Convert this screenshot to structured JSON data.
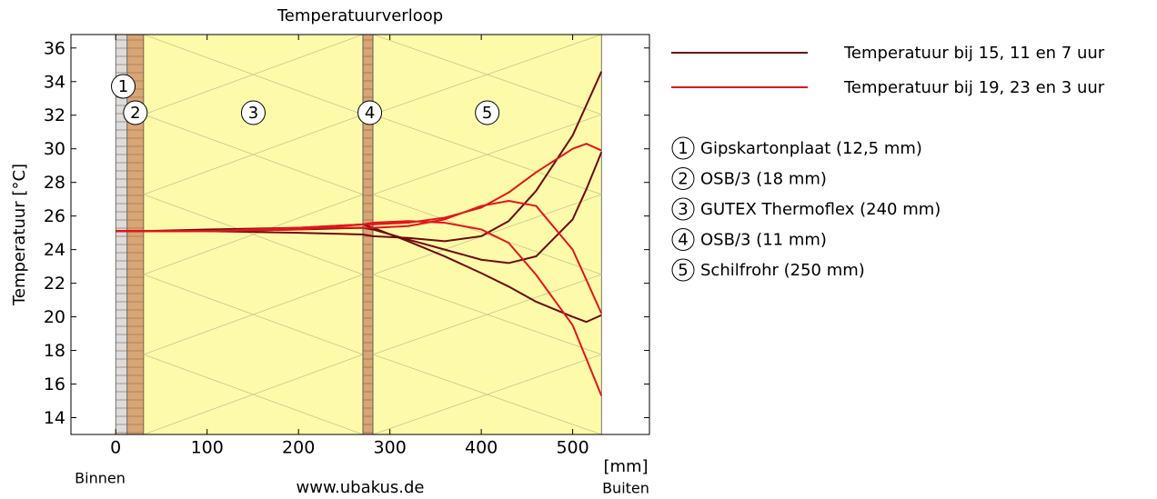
{
  "chart_data": {
    "type": "line",
    "title": "Temperatuurverloop",
    "ylabel": "Temperatuur [°C]",
    "xlabel": "[mm]",
    "inside_label": "Binnen",
    "outside_label": "Buiten",
    "source": "www.ubakus.de",
    "xlim": [
      -49,
      584
    ],
    "ylim": [
      13,
      36.8
    ],
    "xticks": [
      0,
      100,
      200,
      300,
      400,
      500
    ],
    "yticks": [
      14,
      16,
      18,
      20,
      22,
      24,
      26,
      28,
      30,
      32,
      34,
      36
    ],
    "layers": [
      {
        "label": "1",
        "name": "Gipskartonplaat (12,5 mm)",
        "thickness": 12.5,
        "color": "#dcdcdc"
      },
      {
        "label": "2",
        "name": "OSB/3 (18 mm)",
        "thickness": 18,
        "color": "#d8a574"
      },
      {
        "label": "3",
        "name": "GUTEX Thermoflex (240 mm)",
        "thickness": 240,
        "color": "#fdfbaa"
      },
      {
        "label": "4",
        "name": "OSB/3 (11 mm)",
        "thickness": 11,
        "color": "#d8a574"
      },
      {
        "label": "5",
        "name": "Schilfrohr (250 mm)",
        "thickness": 250,
        "color": "#fdfbaa"
      }
    ],
    "x": [
      0,
      30.5,
      100,
      200,
      270.5,
      281.5,
      320,
      360,
      400,
      430,
      460,
      500,
      515,
      531.5
    ],
    "series": [
      {
        "name": "Temperatuur bij 15, 11 en 7 uur",
        "color": "#6e0a0e",
        "lines": [
          [
            25.1,
            25.1,
            25.1,
            25.0,
            24.9,
            24.8,
            24.7,
            24.5,
            24.8,
            25.7,
            27.5,
            30.8,
            32.6,
            34.6
          ],
          [
            25.1,
            25.1,
            25.1,
            25.2,
            25.3,
            25.2,
            24.6,
            24.0,
            23.4,
            23.2,
            23.6,
            25.8,
            27.6,
            29.8
          ],
          [
            25.1,
            25.1,
            25.2,
            25.3,
            25.5,
            25.3,
            24.5,
            23.6,
            22.6,
            21.8,
            20.9,
            20.0,
            19.7,
            20.1
          ]
        ]
      },
      {
        "name": "Temperatuur bij 19, 23 en 3 uur",
        "color": "#e3141c",
        "lines": [
          [
            25.1,
            25.1,
            25.1,
            25.3,
            25.5,
            25.5,
            25.6,
            25.9,
            26.5,
            27.4,
            28.6,
            30.0,
            30.3,
            29.9
          ],
          [
            25.1,
            25.1,
            25.1,
            25.3,
            25.3,
            25.3,
            25.4,
            25.8,
            26.6,
            26.9,
            26.6,
            24.0,
            22.2,
            20.2
          ],
          [
            25.1,
            25.1,
            25.1,
            25.2,
            25.5,
            25.6,
            25.7,
            25.6,
            25.2,
            24.4,
            22.5,
            19.5,
            17.5,
            15.3
          ]
        ]
      }
    ]
  }
}
